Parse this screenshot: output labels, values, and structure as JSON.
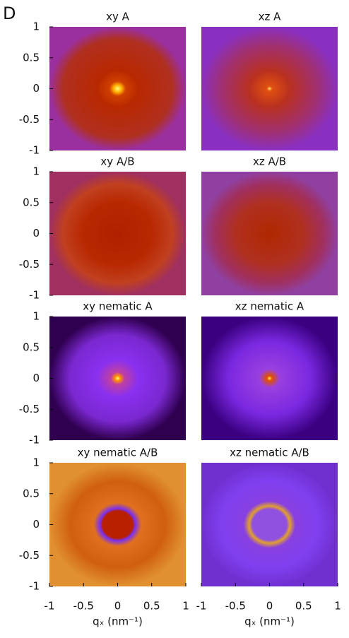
{
  "panel_label": "D",
  "chart_data": [
    {
      "type": "heatmap",
      "title": "xy A",
      "xlim": [
        -1,
        1
      ],
      "ylim": [
        -1,
        1
      ],
      "yticks": [
        -1,
        -0.5,
        0,
        0.5,
        1
      ]
    },
    {
      "type": "heatmap",
      "title": "xz A",
      "xlim": [
        -1,
        1
      ],
      "ylim": [
        -1,
        1
      ]
    },
    {
      "type": "heatmap",
      "title": "xy A/B",
      "xlim": [
        -1,
        1
      ],
      "ylim": [
        -1,
        1
      ],
      "yticks": [
        -1,
        -0.5,
        0,
        0.5,
        1
      ]
    },
    {
      "type": "heatmap",
      "title": "xz A/B",
      "xlim": [
        -1,
        1
      ],
      "ylim": [
        -1,
        1
      ]
    },
    {
      "type": "heatmap",
      "title": "xy nematic A",
      "xlim": [
        -1,
        1
      ],
      "ylim": [
        -1,
        1
      ],
      "yticks": [
        -1,
        -0.5,
        0,
        0.5,
        1
      ]
    },
    {
      "type": "heatmap",
      "title": "xz nematic A",
      "xlim": [
        -1,
        1
      ],
      "ylim": [
        -1,
        1
      ]
    },
    {
      "type": "heatmap",
      "title": "xy nematic A/B",
      "xlim": [
        -1,
        1
      ],
      "ylim": [
        -1,
        1
      ],
      "yticks": [
        -1,
        -0.5,
        0,
        0.5,
        1
      ],
      "xticks": [
        -1,
        -0.5,
        0,
        0.5,
        1
      ],
      "xlabel": "qₓ (nm⁻¹)"
    },
    {
      "type": "heatmap",
      "title": "xz nematic A/B",
      "xlim": [
        -1,
        1
      ],
      "ylim": [
        -1,
        1
      ],
      "xticks": [
        -1,
        -0.5,
        0,
        0.5,
        1
      ],
      "xlabel": "qₓ (nm⁻¹)"
    }
  ]
}
